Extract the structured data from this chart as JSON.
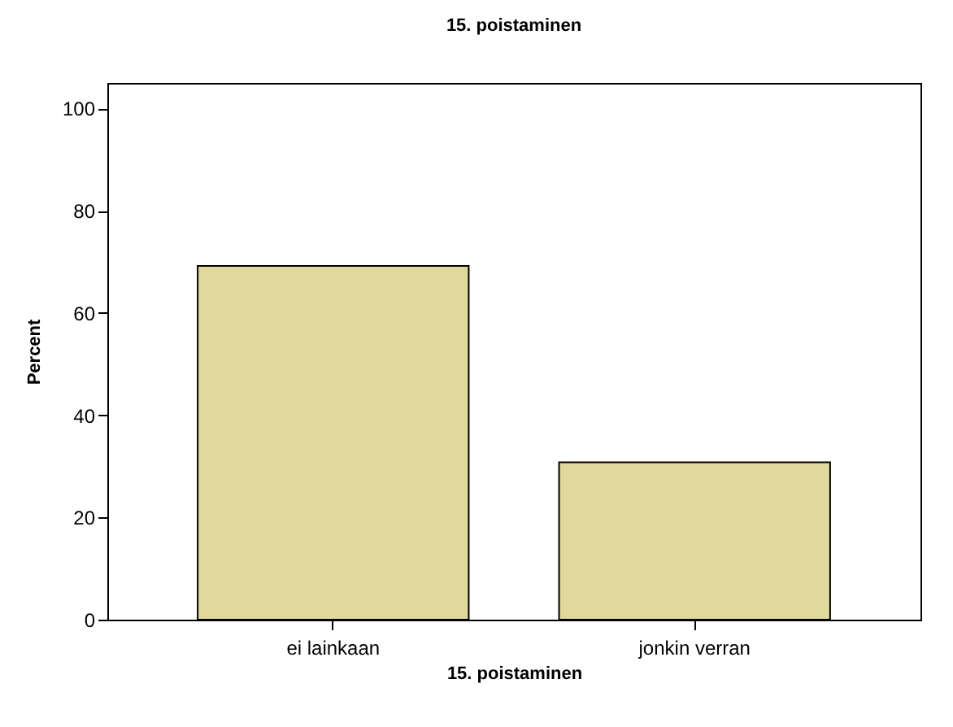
{
  "chart_data": {
    "type": "bar",
    "title": "15. poistaminen",
    "xlabel": "15. poistaminen",
    "ylabel": "Percent",
    "categories": [
      "ei lainkaan",
      "jonkin verran"
    ],
    "values": [
      69.2,
      30.8
    ],
    "color": "#dfd99b",
    "ylim": [
      0,
      105
    ],
    "yticks": [
      0,
      20,
      40,
      60,
      80,
      100
    ],
    "grid": false
  }
}
